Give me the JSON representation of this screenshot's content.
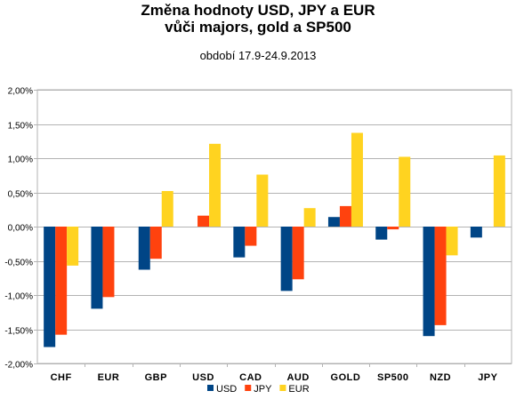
{
  "chart_data": {
    "type": "bar",
    "title": "Změna hodnoty USD, JPY a EUR",
    "title_line2": "vůči majors, gold a SP500",
    "subtitle": "období  17.9-24.9.2013",
    "categories": [
      "CHF",
      "EUR",
      "GBP",
      "USD",
      "CAD",
      "AUD",
      "GOLD",
      "SP500",
      "NZD",
      "JPY"
    ],
    "series": [
      {
        "name": "USD",
        "color": "#004586",
        "values": [
          -1.76,
          -1.2,
          -0.63,
          null,
          -0.45,
          -0.94,
          0.14,
          -0.19,
          -1.6,
          -0.16
        ]
      },
      {
        "name": "JPY",
        "color": "#ff420e",
        "values": [
          -1.58,
          -1.03,
          -0.47,
          0.16,
          -0.28,
          -0.77,
          0.3,
          -0.04,
          -1.44,
          null
        ]
      },
      {
        "name": "EUR",
        "color": "#ffd320",
        "values": [
          -0.57,
          null,
          0.52,
          1.21,
          0.76,
          0.27,
          1.37,
          1.02,
          -0.42,
          1.04
        ]
      }
    ],
    "ylim": [
      -2.0,
      2.0
    ],
    "yticks": [
      2.0,
      1.5,
      1.0,
      0.5,
      0.0,
      -0.5,
      -1.0,
      -1.5,
      -2.0
    ],
    "ytick_labels": [
      "2,00%",
      "1,50%",
      "1,00%",
      "0,50%",
      "0,00%",
      "-0,50%",
      "-1,00%",
      "-1,50%",
      "-2,00%"
    ],
    "xlabel": "",
    "ylabel": "",
    "grid": true,
    "legend_position": "bottom"
  }
}
